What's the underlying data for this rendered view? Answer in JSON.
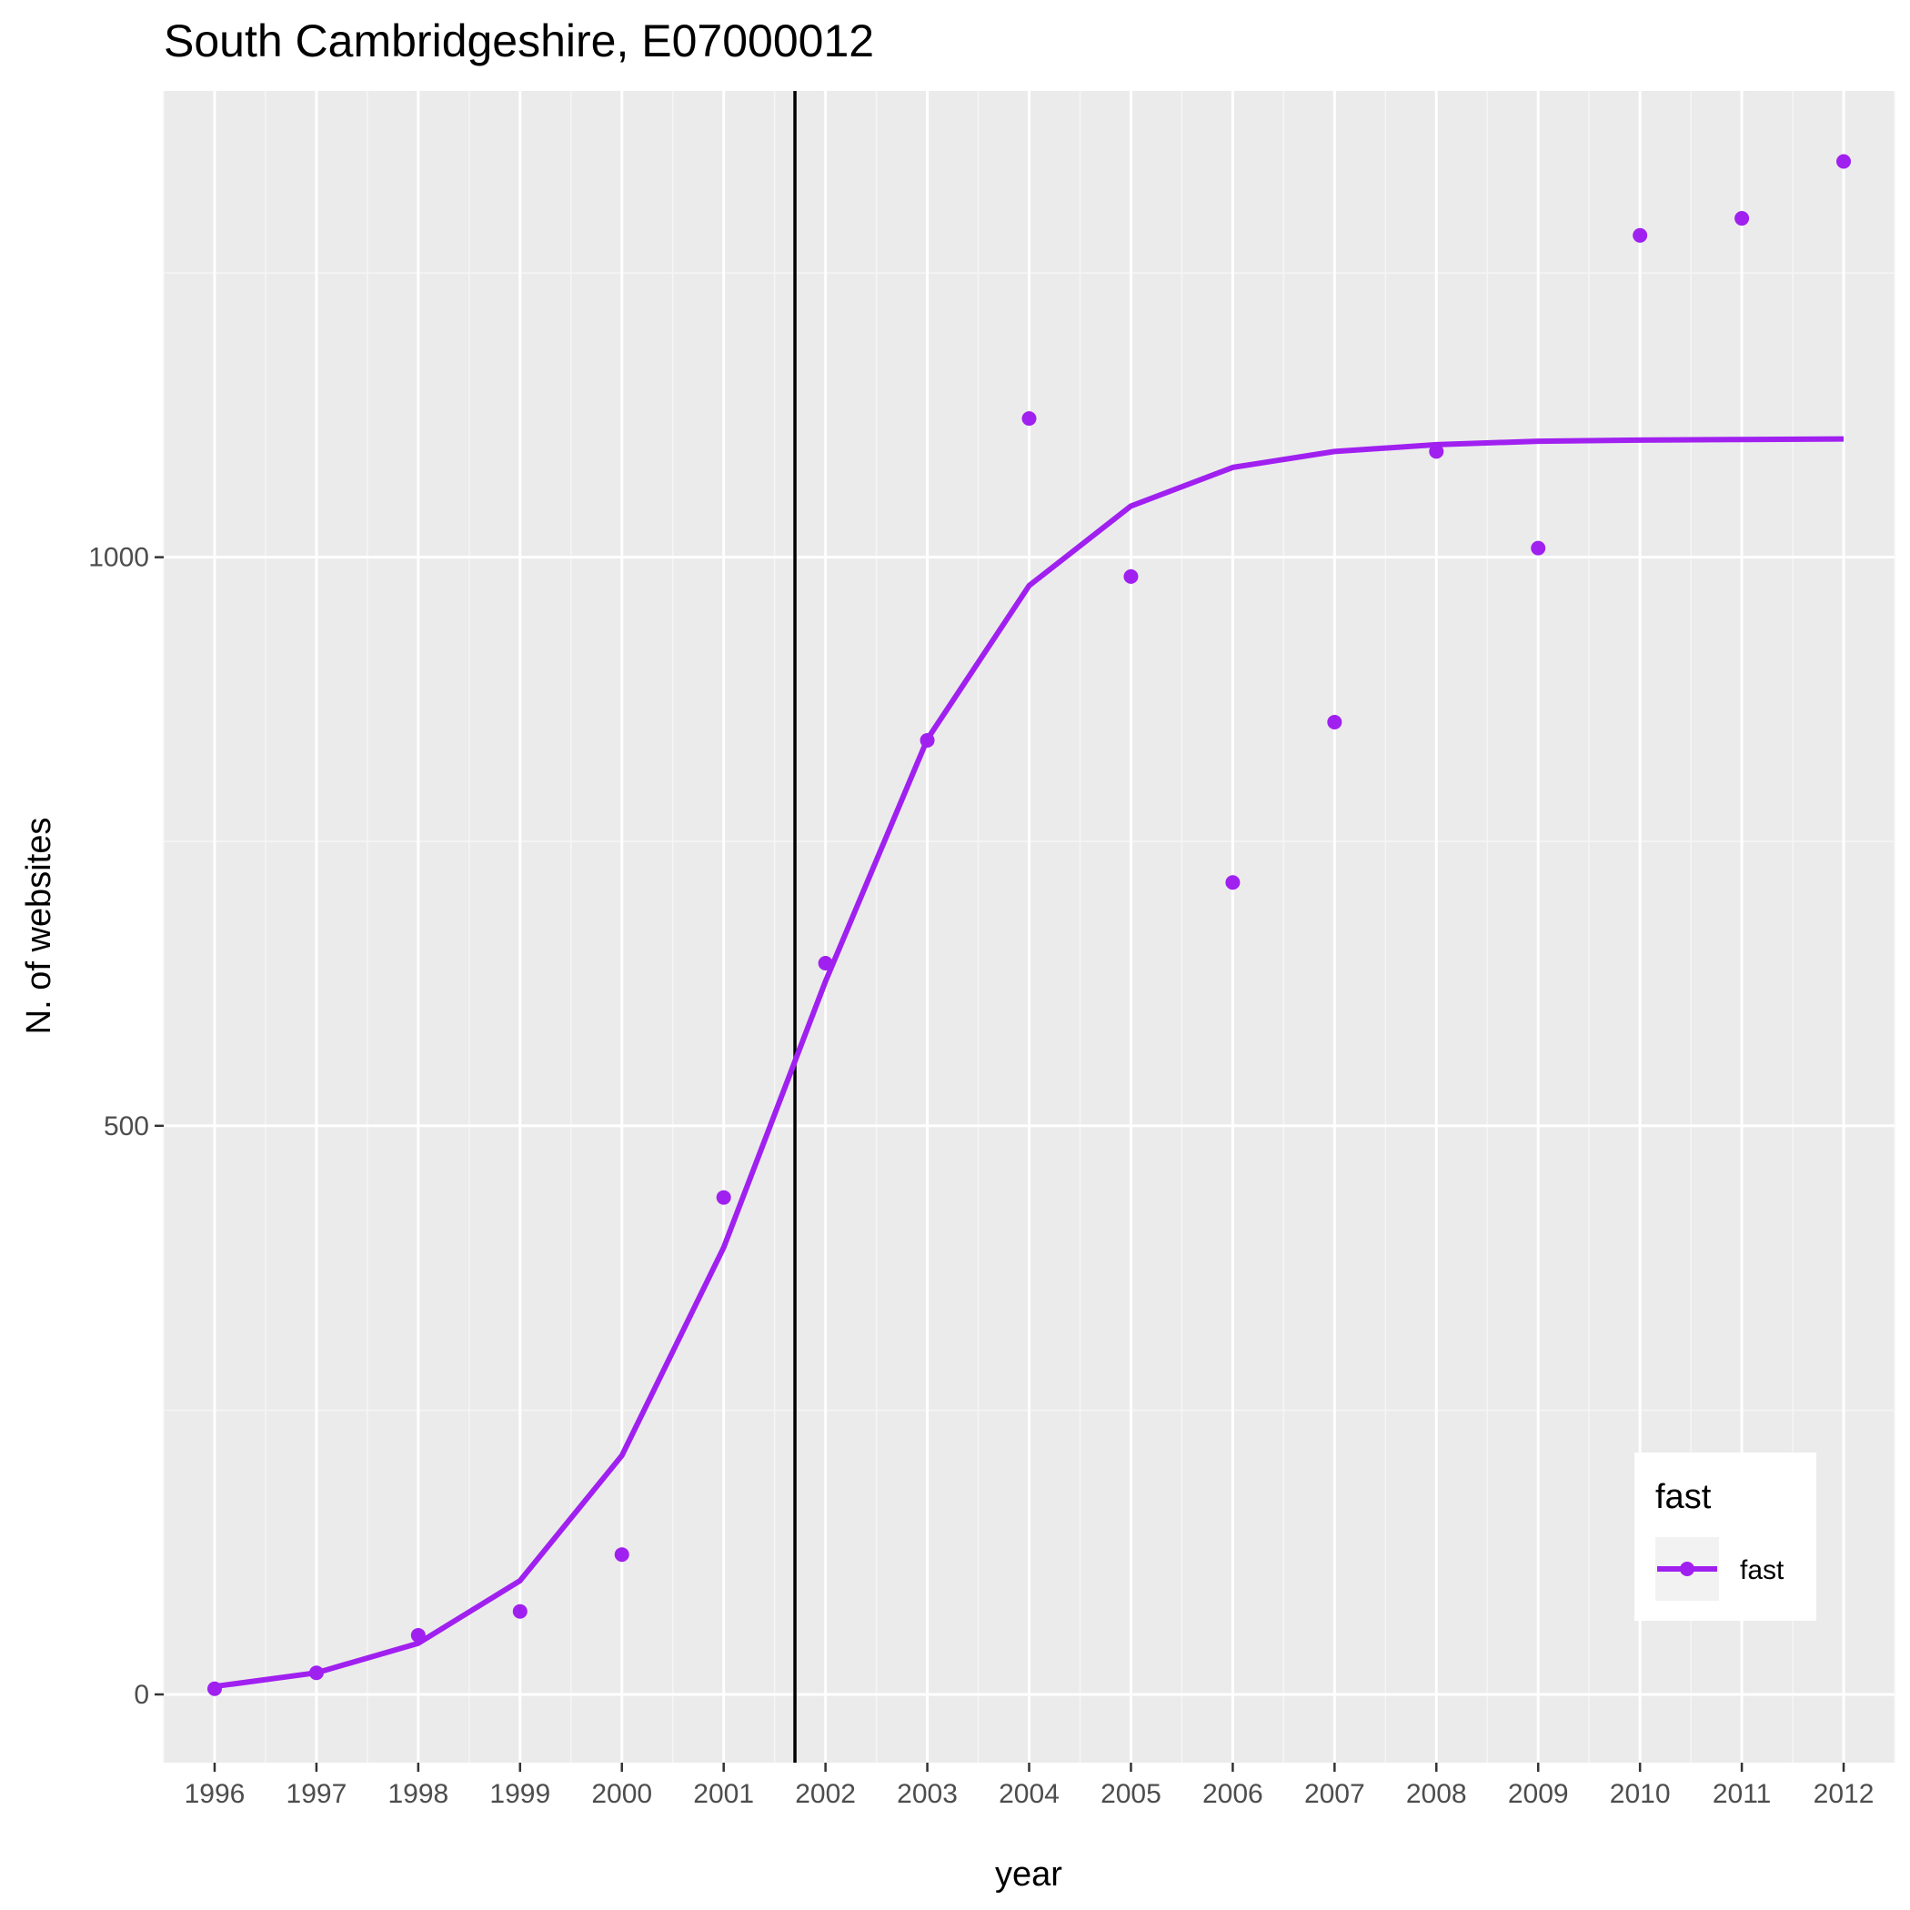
{
  "chart_data": {
    "type": "line",
    "title": "South Cambridgeshire, E07000012",
    "xlabel": "year",
    "ylabel": "N. of websites",
    "x": [
      1996,
      1997,
      1998,
      1999,
      2000,
      2001,
      2002,
      2003,
      2004,
      2005,
      2006,
      2007,
      2008,
      2009,
      2010,
      2011,
      2012
    ],
    "x_tick_labels": [
      "1996",
      "1997",
      "1998",
      "1999",
      "2000",
      "2001",
      "2002",
      "2003",
      "2004",
      "2005",
      "2006",
      "2007",
      "2008",
      "2009",
      "2010",
      "2011",
      "2012"
    ],
    "y_ticks": [
      0,
      500,
      1000
    ],
    "y_tick_labels": [
      "0",
      "500",
      "1000"
    ],
    "xlim": [
      1995.5,
      2012.5
    ],
    "ylim": [
      -60,
      1410
    ],
    "grid": true,
    "series": [
      {
        "name": "fast",
        "color": "#a020f0",
        "points": [
          5,
          19,
          52,
          73,
          123,
          437,
          643,
          839,
          1122,
          983,
          714,
          855,
          1093,
          1008,
          1283,
          1298,
          1348
        ],
        "fitted": [
          7,
          19,
          45,
          100,
          210,
          393,
          627,
          840,
          975,
          1045,
          1079,
          1093,
          1099,
          1102,
          1103,
          1103.5,
          1104
        ]
      }
    ],
    "vline": {
      "x": 2001.7,
      "color": "#000000"
    },
    "legend": {
      "title": "fast",
      "position": "bottom-right",
      "entries": [
        "fast"
      ]
    }
  }
}
